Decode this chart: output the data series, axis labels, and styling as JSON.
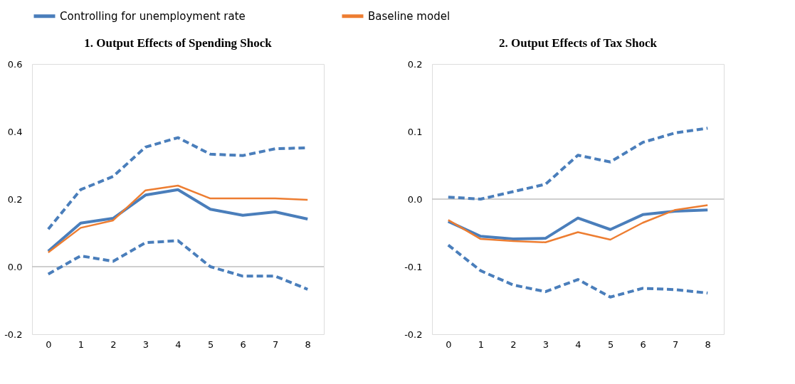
{
  "chart_data": [
    {
      "type": "line",
      "title": "1.    Output Effects of Spending Shock",
      "categories": [
        "0",
        "1",
        "2",
        "3",
        "4",
        "5",
        "6",
        "7",
        "8"
      ],
      "legend": "top",
      "ylim": [
        -0.2,
        0.6
      ],
      "yticks": [
        {
          "value": -0.2,
          "label": "-0.2"
        },
        {
          "value": 0,
          "label": "0.0"
        },
        {
          "value": 0.2,
          "label": "0.2"
        },
        {
          "value": 0.4,
          "label": "0.4"
        },
        {
          "value": 0.6,
          "label": "0.6"
        }
      ],
      "ref_lines": [
        {
          "axis": "y",
          "value": 0,
          "color": "#bfbfbf"
        }
      ],
      "series": [
        {
          "name": "Controlling for unemployment  rate",
          "color": "#4a7ebb",
          "values": [
            0.046,
            0.129,
            0.143,
            0.212,
            0.228,
            0.17,
            0.152,
            0.162,
            0.141
          ]
        },
        {
          "name": "Baseline model",
          "color": "#ed7d31",
          "values": [
            0.042,
            0.115,
            0.137,
            0.226,
            0.24,
            0.202,
            0.202,
            0.202,
            0.198
          ]
        },
        {
          "color": "#4a7ebb",
          "line_style": "dashed",
          "values": [
            0.111,
            0.228,
            0.267,
            0.354,
            0.382,
            0.333,
            0.329,
            0.349,
            0.352
          ]
        },
        {
          "color": "#4a7ebb",
          "line_style": "dashed",
          "values": [
            -0.022,
            0.032,
            0.016,
            0.071,
            0.077,
            0.0,
            -0.028,
            -0.028,
            -0.067
          ]
        }
      ]
    },
    {
      "type": "line",
      "title": "2.    Output Effects of Tax Shock",
      "categories": [
        "0",
        "1",
        "2",
        "3",
        "4",
        "5",
        "6",
        "7",
        "8"
      ],
      "legend": "top",
      "ylim": [
        -0.2,
        0.2
      ],
      "yticks": [
        {
          "value": -0.2,
          "label": "-0.2"
        },
        -0.1,
        {
          "value": 0,
          "label": "0.0"
        },
        0.1,
        0.2
      ],
      "ref_lines": [
        {
          "axis": "y",
          "value": 0,
          "color": "#bfbfbf"
        }
      ],
      "series": [
        {
          "name": "Controlling for unemployment  rate",
          "color": "#4a7ebb",
          "values": [
            -0.033,
            -0.055,
            -0.059,
            -0.058,
            -0.028,
            -0.045,
            -0.023,
            -0.018,
            -0.016
          ]
        },
        {
          "name": "Baseline model",
          "color": "#ed7d31",
          "values": [
            -0.031,
            -0.059,
            -0.062,
            -0.064,
            -0.049,
            -0.06,
            -0.035,
            -0.016,
            -0.009
          ]
        },
        {
          "color": "#4a7ebb",
          "line_style": "dashed",
          "values": [
            0.003,
            0.0,
            0.011,
            0.022,
            0.065,
            0.055,
            0.084,
            0.098,
            0.105
          ]
        },
        {
          "color": "#4a7ebb",
          "line_style": "dashed",
          "values": [
            -0.068,
            -0.106,
            -0.127,
            -0.137,
            -0.119,
            -0.145,
            -0.132,
            -0.134,
            -0.139
          ]
        }
      ]
    }
  ]
}
